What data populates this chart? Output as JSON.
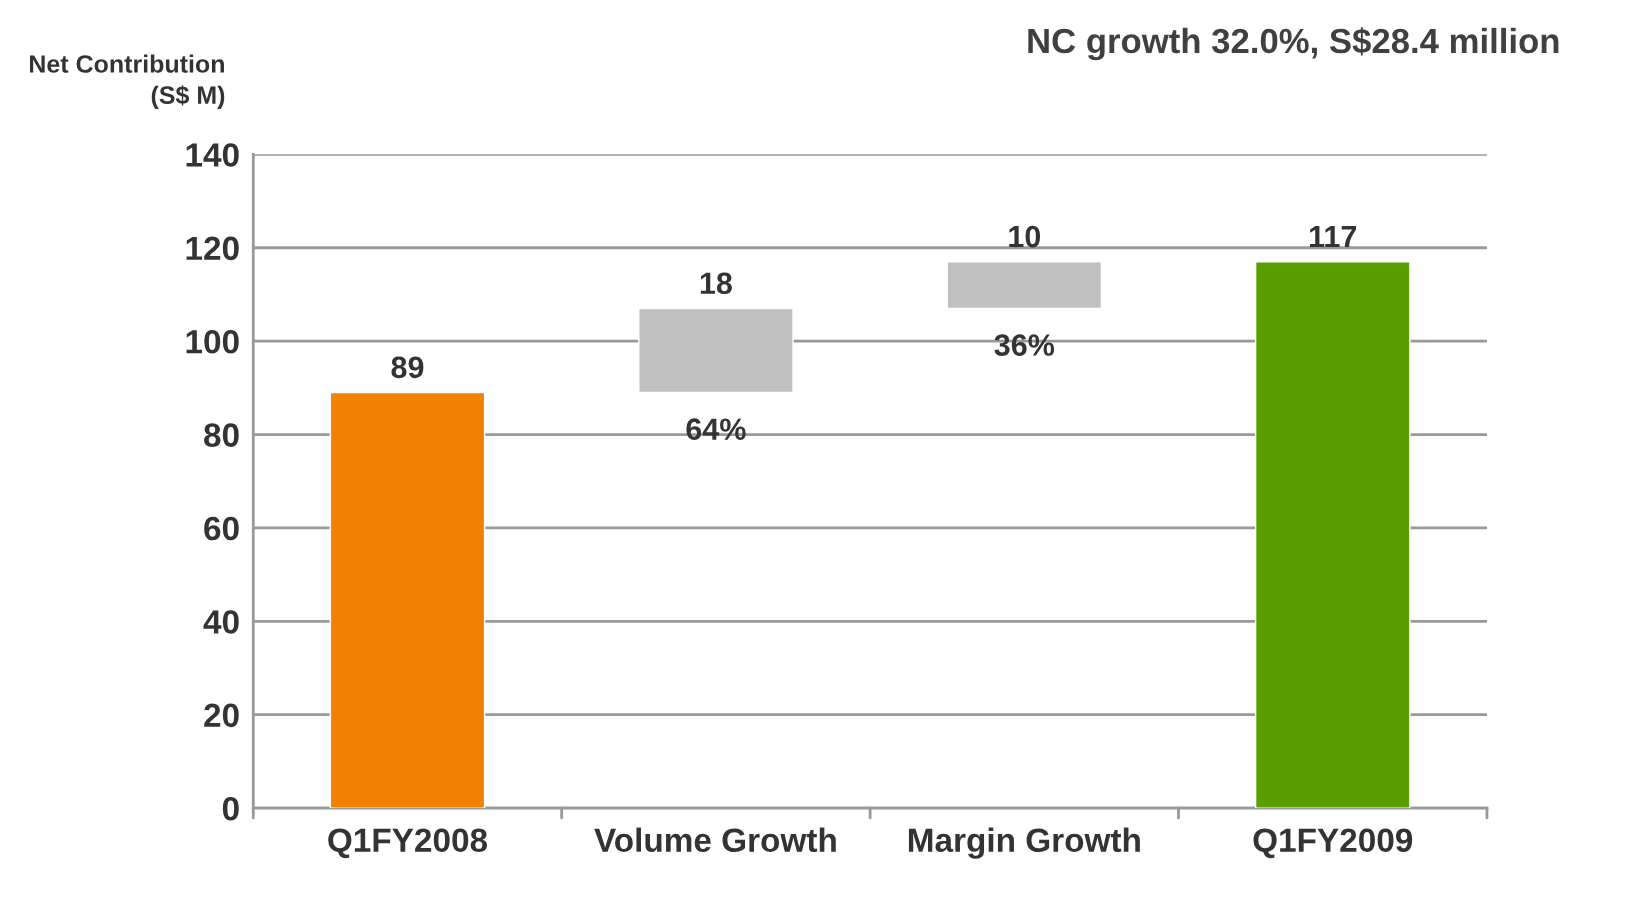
{
  "chart_data": {
    "type": "bar",
    "title": "NC growth 32.0%, S$28.4 million",
    "ylabel": "Net Contribution\n(S$ M)",
    "categories": [
      "Q1FY2008",
      "Volume Growth",
      "Margin Growth",
      "Q1FY2009"
    ],
    "values": [
      89,
      18,
      10,
      117
    ],
    "base": [
      0,
      89,
      107,
      0
    ],
    "colors": [
      "#f08000",
      "#c0c0c0",
      "#c0c0c0",
      "#5a9e00"
    ],
    "ylim": [
      0,
      140
    ],
    "yticks": [
      0,
      20,
      40,
      60,
      80,
      100,
      120,
      140
    ],
    "grid": "y",
    "data_labels": true,
    "legend": false,
    "annotations": [
      "64%",
      "36%"
    ]
  }
}
